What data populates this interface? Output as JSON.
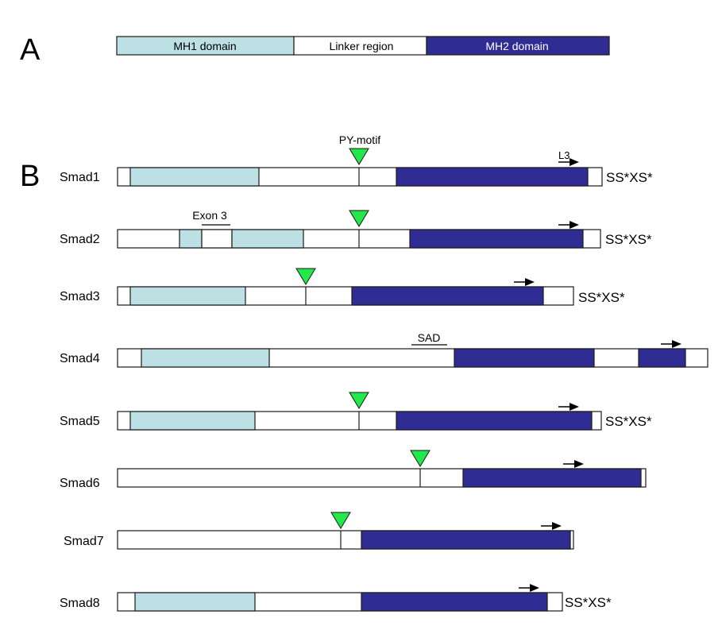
{
  "panel_labels": {
    "a": "A",
    "b": "B"
  },
  "colors": {
    "mh1": "#bde0e4",
    "linker": "#ffffff",
    "mh2": "#2f2c94",
    "stroke": "#1a1a1a",
    "py_motif": "#22e84a"
  },
  "panel_a": {
    "mh1_label": "MH1 domain",
    "linker_label": "Linker region",
    "mh2_label": "MH2 domain"
  },
  "annotations": {
    "py_motif": "PY-motif",
    "l3": "L3",
    "exon3": "Exon 3",
    "sad": "SAD"
  },
  "smads": [
    {
      "name": "Smad1",
      "motif": "SS*XS*"
    },
    {
      "name": "Smad2",
      "motif": "SS*XS*"
    },
    {
      "name": "Smad3",
      "motif": "SS*XS*"
    },
    {
      "name": "Smad4",
      "motif": ""
    },
    {
      "name": "Smad5",
      "motif": "SS*XS*"
    },
    {
      "name": "Smad6",
      "motif": ""
    },
    {
      "name": "Smad7",
      "motif": ""
    },
    {
      "name": "Smad8",
      "motif": "SS*XS*"
    }
  ]
}
